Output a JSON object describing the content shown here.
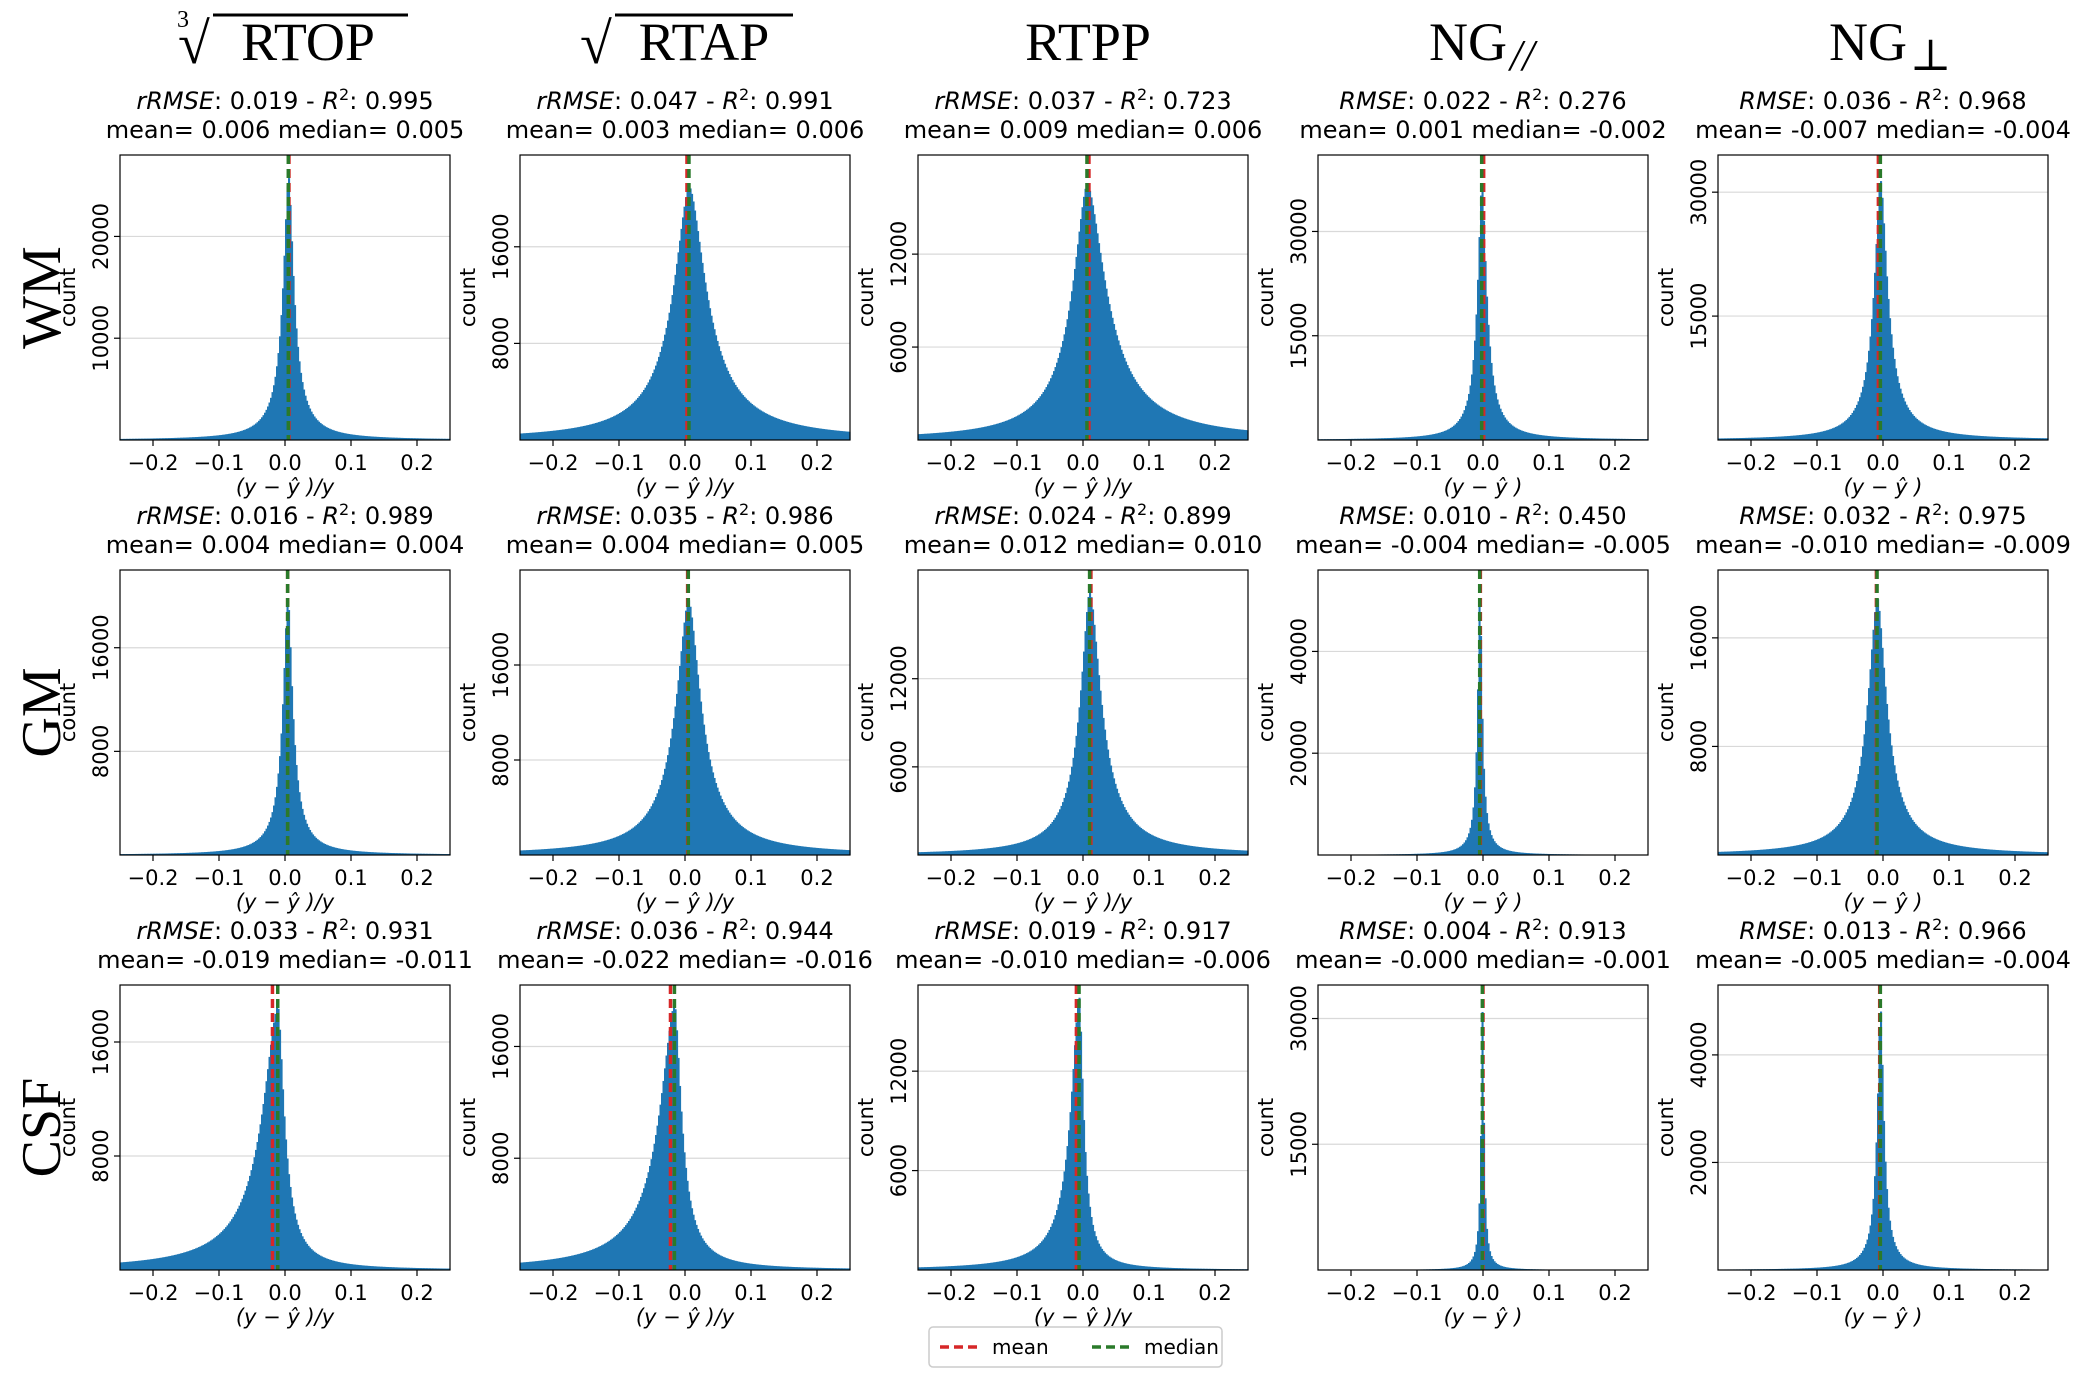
{
  "chart_data": {
    "type": "histogram-grid",
    "columns": [
      {
        "key": "rtop",
        "title": "RTOP",
        "title_prefix": "∛",
        "xlabel": "(y − ŷ )/y"
      },
      {
        "key": "rtap",
        "title": "RTAP",
        "title_prefix": "√",
        "xlabel": "(y − ŷ )/y"
      },
      {
        "key": "rtpp",
        "title": "RTPP",
        "title_prefix": "",
        "xlabel": "(y − ŷ )/y"
      },
      {
        "key": "ngpar",
        "title": "NG",
        "title_sub": "//",
        "xlabel": "(y − ŷ )"
      },
      {
        "key": "ngperp",
        "title": "NG",
        "title_sub": "⊥",
        "xlabel": "(y − ŷ )"
      }
    ],
    "rows": [
      "WM",
      "GM",
      "CSF"
    ],
    "xlim": [
      -0.25,
      0.25
    ],
    "xticks": [
      -0.2,
      -0.1,
      0.0,
      0.1,
      0.2
    ],
    "xtick_labels": [
      "−0.2",
      "−0.1",
      "0.0",
      "0.1",
      "0.2"
    ],
    "ylabel": "count",
    "legend": {
      "position": "bottom-center",
      "entries": [
        {
          "label": "mean",
          "color": "#d62728"
        },
        {
          "label": "median",
          "color": "#2a7a2a"
        }
      ]
    },
    "bar_color": "#1f77b4",
    "panels": [
      [
        {
          "metric": "rRMSE",
          "rmse": "0.019",
          "r2": "0.995",
          "mean": "0.006",
          "median": "0.005",
          "mean_val": 0.006,
          "median_val": 0.005,
          "peak": 26000,
          "ymax": 28000,
          "yticks": [
            10000,
            20000
          ],
          "width": 0.01,
          "skew": 1.0
        },
        {
          "metric": "rRMSE",
          "rmse": "0.047",
          "r2": "0.991",
          "mean": "0.003",
          "median": "0.006",
          "mean_val": 0.003,
          "median_val": 0.006,
          "peak": 21000,
          "ymax": 23600,
          "yticks": [
            8000,
            16000
          ],
          "width": 0.03,
          "skew": 1.1
        },
        {
          "metric": "rRMSE",
          "rmse": "0.037",
          "r2": "0.723",
          "mean": "0.009",
          "median": "0.006",
          "mean_val": 0.009,
          "median_val": 0.006,
          "peak": 16500,
          "ymax": 18400,
          "yticks": [
            6000,
            12000
          ],
          "width": 0.028,
          "skew": 1.3
        },
        {
          "metric": "RMSE",
          "rmse": "0.022",
          "r2": "0.276",
          "mean": "0.001",
          "median": "-0.002",
          "mean_val": 0.001,
          "median_val": -0.002,
          "peak": 37000,
          "ymax": 41000,
          "yticks": [
            15000,
            30000
          ],
          "width": 0.008,
          "skew": 1.1
        },
        {
          "metric": "RMSE",
          "rmse": "0.036",
          "r2": "0.968",
          "mean": "-0.007",
          "median": "-0.004",
          "mean_val": -0.007,
          "median_val": -0.004,
          "peak": 31500,
          "ymax": 34500,
          "yticks": [
            15000,
            30000
          ],
          "width": 0.012,
          "skew": 1.1
        }
      ],
      [
        {
          "metric": "rRMSE",
          "rmse": "0.016",
          "r2": "0.989",
          "mean": "0.004",
          "median": "0.004",
          "mean_val": 0.004,
          "median_val": 0.004,
          "peak": 20000,
          "ymax": 22000,
          "yticks": [
            8000,
            16000
          ],
          "width": 0.009,
          "skew": 1.0
        },
        {
          "metric": "rRMSE",
          "rmse": "0.035",
          "r2": "0.986",
          "mean": "0.004",
          "median": "0.005",
          "mean_val": 0.004,
          "median_val": 0.005,
          "peak": 21500,
          "ymax": 24000,
          "yticks": [
            8000,
            16000
          ],
          "width": 0.024,
          "skew": 1.0
        },
        {
          "metric": "rRMSE",
          "rmse": "0.024",
          "r2": "0.899",
          "mean": "0.012",
          "median": "0.010",
          "mean_val": 0.012,
          "median_val": 0.01,
          "peak": 18000,
          "ymax": 19400,
          "yticks": [
            6000,
            12000
          ],
          "width": 0.018,
          "skew": 1.2
        },
        {
          "metric": "RMSE",
          "rmse": "0.010",
          "r2": "0.450",
          "mean": "-0.004",
          "median": "-0.005",
          "mean_val": -0.004,
          "median_val": -0.005,
          "peak": 52000,
          "ymax": 56000,
          "yticks": [
            20000,
            40000
          ],
          "width": 0.004,
          "skew": 1.0
        },
        {
          "metric": "RMSE",
          "rmse": "0.032",
          "r2": "0.975",
          "mean": "-0.010",
          "median": "-0.009",
          "mean_val": -0.01,
          "median_val": -0.009,
          "peak": 19000,
          "ymax": 21000,
          "yticks": [
            8000,
            16000
          ],
          "width": 0.018,
          "skew": 1.0
        }
      ],
      [
        {
          "metric": "rRMSE",
          "rmse": "0.033",
          "r2": "0.931",
          "mean": "-0.019",
          "median": "-0.011",
          "mean_val": -0.019,
          "median_val": -0.011,
          "peak": 18500,
          "ymax": 20000,
          "yticks": [
            8000,
            16000
          ],
          "width": 0.012,
          "skew": 0.4
        },
        {
          "metric": "rRMSE",
          "rmse": "0.036",
          "r2": "0.944",
          "mean": "-0.022",
          "median": "-0.016",
          "mean_val": -0.022,
          "median_val": -0.016,
          "peak": 19000,
          "ymax": 20400,
          "yticks": [
            8000,
            16000
          ],
          "width": 0.013,
          "skew": 0.45
        },
        {
          "metric": "rRMSE",
          "rmse": "0.019",
          "r2": "0.917",
          "mean": "-0.010",
          "median": "-0.006",
          "mean_val": -0.01,
          "median_val": -0.006,
          "peak": 16500,
          "ymax": 17200,
          "yticks": [
            6000,
            12000
          ],
          "width": 0.008,
          "skew": 0.5
        },
        {
          "metric": "RMSE",
          "rmse": "0.004",
          "r2": "0.913",
          "mean": "-0.000",
          "median": "-0.001",
          "mean_val": 0.0,
          "median_val": -0.001,
          "peak": 31000,
          "ymax": 34000,
          "yticks": [
            15000,
            30000
          ],
          "width": 0.0025,
          "skew": 1.0
        },
        {
          "metric": "RMSE",
          "rmse": "0.013",
          "r2": "0.966",
          "mean": "-0.005",
          "median": "-0.004",
          "mean_val": -0.005,
          "median_val": -0.004,
          "peak": 49000,
          "ymax": 53000,
          "yticks": [
            20000,
            40000
          ],
          "width": 0.006,
          "skew": 1.0
        }
      ]
    ]
  }
}
